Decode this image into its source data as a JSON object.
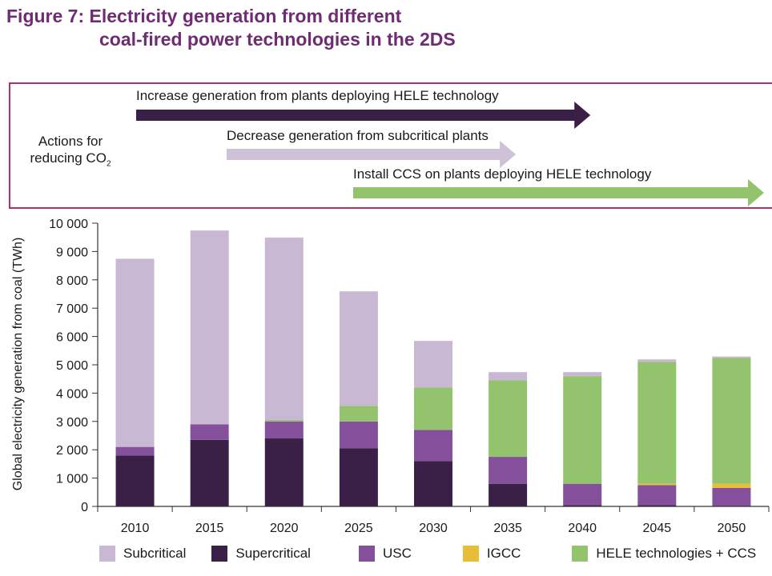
{
  "title": {
    "line1": "Figure 7: Electricity generation from different",
    "line2": "coal-fired power technologies in the 2DS"
  },
  "actions": {
    "label_line1": "Actions for",
    "label_line2": "reducing CO",
    "label_sub": "2",
    "arrows": [
      {
        "text": "Increase generation from plants deploying HELE technology",
        "color": "#3a1f47",
        "start": 2010,
        "end": 2040
      },
      {
        "text": "Decrease generation from subcritical plants",
        "color": "#cfc2d8",
        "start": 2020,
        "end": 2035
      },
      {
        "text": "Install CCS on plants deploying HELE technology",
        "color": "#93c36c",
        "start": 2025,
        "end": 2050
      }
    ]
  },
  "chart_data": {
    "type": "bar",
    "stacked": true,
    "title": "Figure 7: Electricity generation from different coal-fired power technologies in the 2DS",
    "xlabel": "",
    "ylabel": "Global electricity generation from coal (TWh)",
    "ylim": [
      0,
      10000
    ],
    "yticks": [
      0,
      1000,
      2000,
      3000,
      4000,
      5000,
      6000,
      7000,
      8000,
      9000,
      10000
    ],
    "ytick_labels": [
      "0",
      "1 000",
      "2 000",
      "3 000",
      "4 000",
      "5 000",
      "6 000",
      "7 000",
      "8 000",
      "9 000",
      "10 000"
    ],
    "categories": [
      "2010",
      "2015",
      "2020",
      "2025",
      "2030",
      "2035",
      "2040",
      "2045",
      "2050"
    ],
    "series": [
      {
        "name": "Supercritical",
        "color": "#3a1f47",
        "values": [
          1800,
          2350,
          2400,
          2050,
          1600,
          800,
          50,
          50,
          0
        ]
      },
      {
        "name": "USC",
        "color": "#84509b",
        "values": [
          300,
          550,
          600,
          950,
          1100,
          950,
          750,
          700,
          650
        ]
      },
      {
        "name": "IGCC",
        "color": "#e8bd37",
        "values": [
          0,
          0,
          0,
          0,
          0,
          0,
          0,
          50,
          150
        ]
      },
      {
        "name": "HELE technologies + CCS",
        "color": "#93c36c",
        "values": [
          0,
          0,
          50,
          550,
          1500,
          2700,
          3800,
          4300,
          4450
        ]
      },
      {
        "name": "Subcritical",
        "color": "#c9b8d3",
        "values": [
          6650,
          6850,
          6450,
          4050,
          1650,
          300,
          150,
          100,
          50
        ]
      }
    ],
    "legend": [
      {
        "name": "Subcritical",
        "color": "#c9b8d3"
      },
      {
        "name": "Supercritical",
        "color": "#3a1f47"
      },
      {
        "name": "USC",
        "color": "#84509b"
      },
      {
        "name": "IGCC",
        "color": "#e8bd37"
      },
      {
        "name": "HELE technologies + CCS",
        "color": "#93c36c"
      }
    ],
    "legend_position": "bottom",
    "grid": false
  }
}
